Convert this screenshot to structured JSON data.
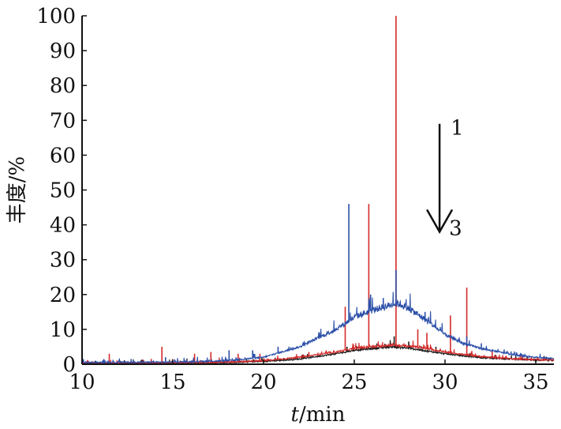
{
  "chart_data": {
    "type": "line",
    "xlabel_italic": "t",
    "xlabel_rest": "/min",
    "ylabel": "丰度/%",
    "xlim": [
      10,
      36
    ],
    "ylim": [
      0,
      100
    ],
    "xticks": [
      10,
      15,
      20,
      25,
      30,
      35
    ],
    "yticks": [
      0,
      10,
      20,
      30,
      40,
      50,
      60,
      70,
      80,
      90,
      100
    ],
    "grid": false,
    "legend": "none",
    "annotations": {
      "arrow_start_label": "1",
      "arrow_end_label": "3",
      "arrow_from": [
        29.7,
        69
      ],
      "arrow_to": [
        29.7,
        38
      ]
    },
    "series": [
      {
        "color": "#2b4fa8",
        "baseline": [
          [
            10,
            0.5
          ],
          [
            15,
            0.6
          ],
          [
            18,
            1.0
          ],
          [
            20,
            2.0
          ],
          [
            22,
            5.0
          ],
          [
            24,
            10.0
          ],
          [
            25,
            13.5
          ],
          [
            26,
            15.5
          ],
          [
            27,
            17.0
          ],
          [
            27.4,
            17.5
          ],
          [
            28,
            16.0
          ],
          [
            29,
            12.5
          ],
          [
            30,
            8.5
          ],
          [
            31,
            6.0
          ],
          [
            32,
            4.5
          ],
          [
            33,
            3.5
          ],
          [
            34,
            2.5
          ],
          [
            35,
            2.0
          ],
          [
            36,
            1.6
          ]
        ],
        "peaks": [
          [
            11.2,
            1.5
          ],
          [
            14.6,
            2.0
          ],
          [
            18.1,
            4.0
          ],
          [
            19.4,
            4.0
          ],
          [
            20.8,
            5.0
          ],
          [
            23.8,
            9.0
          ],
          [
            24.7,
            46.0
          ],
          [
            25.9,
            20.0
          ],
          [
            26.6,
            19.0
          ],
          [
            27.3,
            27.0
          ],
          [
            28.9,
            15.0
          ],
          [
            31.2,
            8.0
          ],
          [
            32.0,
            6.0
          ]
        ]
      },
      {
        "color": "#d42a2a",
        "baseline": [
          [
            10,
            0.3
          ],
          [
            15,
            0.4
          ],
          [
            18,
            0.6
          ],
          [
            20,
            1.0
          ],
          [
            22,
            2.0
          ],
          [
            24,
            3.5
          ],
          [
            25,
            4.5
          ],
          [
            26,
            5.0
          ],
          [
            27,
            5.5
          ],
          [
            28,
            5.2
          ],
          [
            29,
            4.5
          ],
          [
            30,
            3.5
          ],
          [
            31,
            2.8
          ],
          [
            32,
            2.2
          ],
          [
            33,
            1.8
          ],
          [
            34,
            1.5
          ],
          [
            35,
            1.3
          ],
          [
            36,
            1.2
          ]
        ],
        "peaks": [
          [
            11.5,
            3.0
          ],
          [
            14.4,
            5.0
          ],
          [
            16.2,
            3.0
          ],
          [
            17.1,
            3.5
          ],
          [
            18.6,
            3.0
          ],
          [
            19.8,
            3.0
          ],
          [
            22.5,
            3.5
          ],
          [
            24.5,
            16.5
          ],
          [
            25.8,
            46.0
          ],
          [
            27.3,
            100.0
          ],
          [
            28.5,
            10.0
          ],
          [
            29.0,
            9.0
          ],
          [
            30.3,
            14.0
          ],
          [
            31.2,
            22.0
          ],
          [
            32.6,
            4.0
          ]
        ]
      },
      {
        "color": "#1a1a1a",
        "baseline": [
          [
            10,
            0.2
          ],
          [
            15,
            0.3
          ],
          [
            18,
            0.5
          ],
          [
            20,
            0.8
          ],
          [
            22,
            1.5
          ],
          [
            24,
            3.0
          ],
          [
            25,
            4.0
          ],
          [
            26,
            4.5
          ],
          [
            27,
            5.0
          ],
          [
            28,
            4.6
          ],
          [
            29,
            3.8
          ],
          [
            30,
            3.0
          ],
          [
            31,
            2.4
          ],
          [
            32,
            1.9
          ],
          [
            33,
            1.6
          ],
          [
            34,
            1.4
          ],
          [
            35,
            1.2
          ],
          [
            36,
            1.1
          ]
        ],
        "peaks": [
          [
            24.6,
            5.0
          ],
          [
            27.2,
            8.0
          ],
          [
            28.0,
            6.5
          ],
          [
            29.5,
            5.0
          ]
        ]
      }
    ]
  }
}
